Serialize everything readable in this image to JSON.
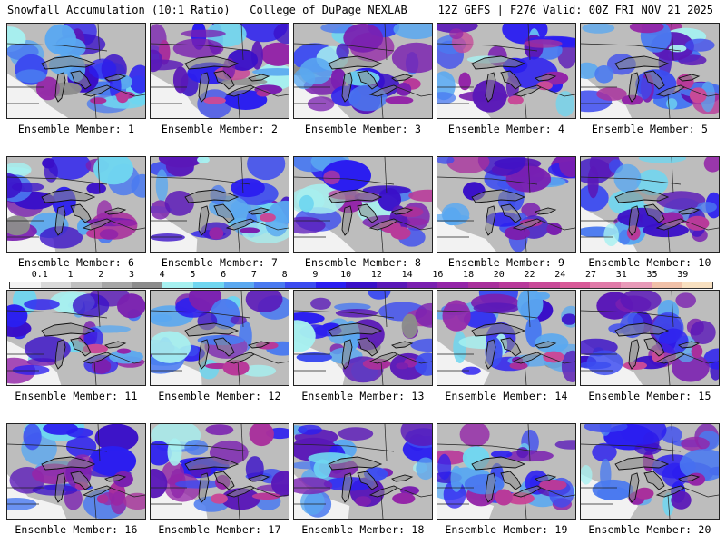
{
  "header": {
    "left": "Snowfall Accumulation (10:1 Ratio) | College of DuPage NEXLAB",
    "right": "12Z GEFS | F276 Valid: 00Z FRI NOV 21 2025"
  },
  "colors": {
    "background": "#ffffff",
    "lake_fill": "#8c8c8c",
    "coast_line": "#111111",
    "border_line": "#222222"
  },
  "legend": {
    "labels": [
      "0.1",
      "1",
      "2",
      "3",
      "4",
      "5",
      "6",
      "7",
      "8",
      "9",
      "10",
      "12",
      "14",
      "16",
      "18",
      "20",
      "22",
      "24",
      "27",
      "31",
      "35",
      "39"
    ],
    "colors": [
      "#f2f2f2",
      "#d9d9d9",
      "#bfbfbf",
      "#a6a6a6",
      "#8c8c8c",
      "#a6f0f0",
      "#6fd6f0",
      "#5aa8f0",
      "#4a7af0",
      "#3c4cf0",
      "#2b1ef0",
      "#3a10c8",
      "#5a18b8",
      "#7a20b0",
      "#9426a8",
      "#a8309c",
      "#b83a9a",
      "#c84a98",
      "#d85a98",
      "#e07aa8",
      "#e89ab8",
      "#f0c0a8",
      "#f8e0c0"
    ]
  },
  "panels": [
    {
      "label": "Ensemble Member: 1",
      "intensity": 0.55,
      "seed": 11
    },
    {
      "label": "Ensemble Member: 2",
      "intensity": 0.7,
      "seed": 22
    },
    {
      "label": "Ensemble Member: 3",
      "intensity": 0.5,
      "seed": 33
    },
    {
      "label": "Ensemble Member: 4",
      "intensity": 0.75,
      "seed": 44
    },
    {
      "label": "Ensemble Member: 5",
      "intensity": 0.65,
      "seed": 55
    },
    {
      "label": "Ensemble Member: 6",
      "intensity": 0.55,
      "seed": 66
    },
    {
      "label": "Ensemble Member: 7",
      "intensity": 0.45,
      "seed": 77
    },
    {
      "label": "Ensemble Member: 8",
      "intensity": 0.7,
      "seed": 88
    },
    {
      "label": "Ensemble Member: 9",
      "intensity": 0.65,
      "seed": 99
    },
    {
      "label": "Ensemble Member: 10",
      "intensity": 0.45,
      "seed": 110
    },
    {
      "label": "Ensemble Member: 11",
      "intensity": 0.6,
      "seed": 121
    },
    {
      "label": "Ensemble Member: 12",
      "intensity": 0.35,
      "seed": 132
    },
    {
      "label": "Ensemble Member: 13",
      "intensity": 0.7,
      "seed": 143
    },
    {
      "label": "Ensemble Member: 14",
      "intensity": 0.45,
      "seed": 154
    },
    {
      "label": "Ensemble Member: 15",
      "intensity": 0.65,
      "seed": 165
    },
    {
      "label": "Ensemble Member: 16",
      "intensity": 0.6,
      "seed": 176
    },
    {
      "label": "Ensemble Member: 17",
      "intensity": 0.6,
      "seed": 187
    },
    {
      "label": "Ensemble Member: 18",
      "intensity": 0.4,
      "seed": 198
    },
    {
      "label": "Ensemble Member: 19",
      "intensity": 0.65,
      "seed": 209
    },
    {
      "label": "Ensemble Member: 20",
      "intensity": 0.5,
      "seed": 220
    }
  ]
}
